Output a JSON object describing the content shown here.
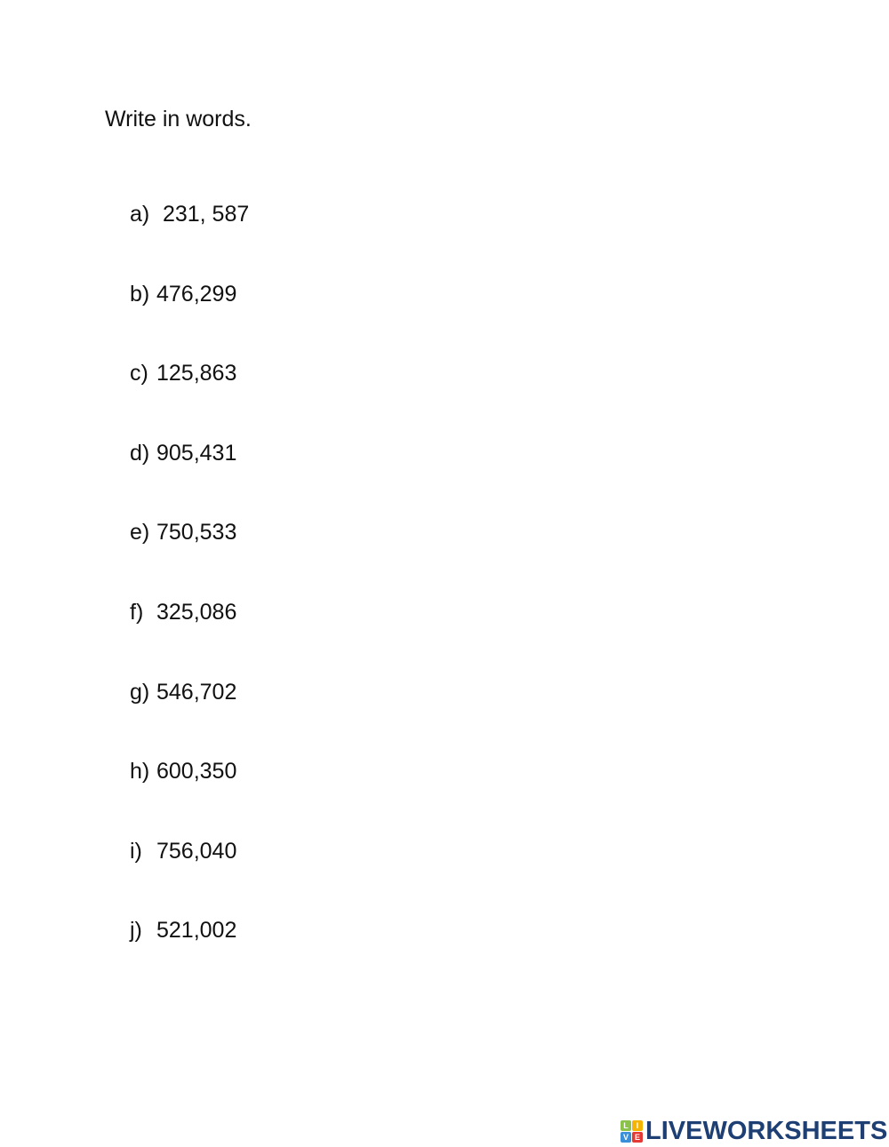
{
  "instruction": "Write in words.",
  "items": [
    {
      "label": "a)",
      "value": " 231, 587"
    },
    {
      "label": "b)",
      "value": "476,299"
    },
    {
      "label": "c)",
      "value": "125,863"
    },
    {
      "label": "d)",
      "value": "905,431"
    },
    {
      "label": "e)",
      "value": "750,533"
    },
    {
      "label": "f)",
      "value": "325,086"
    },
    {
      "label": "g)",
      "value": "546,702"
    },
    {
      "label": "h)",
      "value": "600,350"
    },
    {
      "label": "i)",
      "value": "756,040"
    },
    {
      "label": "j)",
      "value": "521,002"
    }
  ],
  "logo": {
    "text": "LIVEWORKSHEETS",
    "tiles": [
      "L",
      "I",
      "V",
      "E"
    ],
    "tile_colors": [
      "#8bc34a",
      "#f4b400",
      "#3b8fd9",
      "#e53935"
    ],
    "text_color": "#1d3f74"
  }
}
